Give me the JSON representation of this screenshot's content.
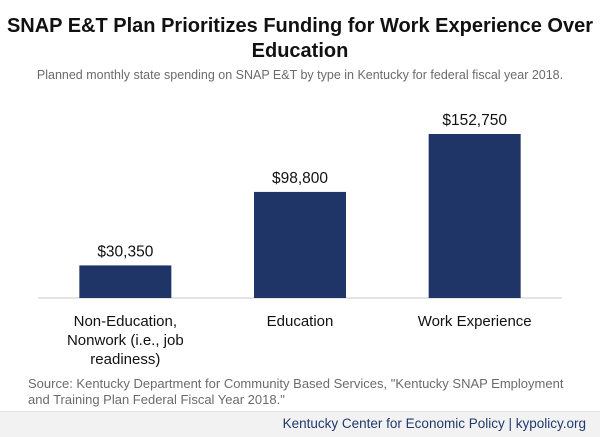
{
  "title": "SNAP E&T Plan Prioritizes Funding for Work Experience Over Education",
  "subtitle": "Planned monthly state spending on SNAP E&T by type in Kentucky for federal fiscal year 2018.",
  "source": "Source: Kentucky Department for Community Based Services, \"Kentucky SNAP Employment and Training Plan Federal Fiscal Year 2018.\"",
  "footer": "Kentucky Center for Economic Policy | kypolicy.org",
  "colors": {
    "bar": "#1f3467",
    "axis": "#c8c8c8"
  },
  "chart_data": {
    "type": "bar",
    "categories": [
      "Non-Education, Nonwork (i.e., job readiness)",
      "Education",
      "Work Experience"
    ],
    "values": [
      30350,
      98800,
      152750
    ],
    "value_labels": [
      "$30,350",
      "$98,800",
      "$152,750"
    ],
    "ylim": [
      0,
      152750
    ],
    "grid": false,
    "legend": "none"
  }
}
